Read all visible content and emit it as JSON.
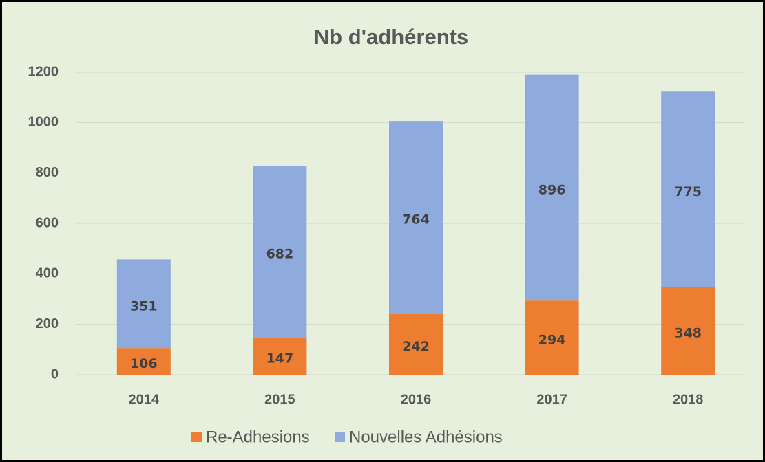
{
  "chart_data": {
    "type": "bar",
    "stacked": true,
    "title": "Nb d'adhérents",
    "categories": [
      "2014",
      "2015",
      "2016",
      "2017",
      "2018"
    ],
    "series": [
      {
        "name": "Re-Adhesions",
        "color": "#ed7d31",
        "values": [
          106,
          147,
          242,
          294,
          348
        ]
      },
      {
        "name": "Nouvelles Adhésions",
        "color": "#8faadc",
        "values": [
          351,
          682,
          764,
          896,
          775
        ]
      }
    ],
    "ylim": [
      0,
      1200
    ],
    "yticks": [
      0,
      200,
      400,
      600,
      800,
      1000,
      1200
    ],
    "grid": true,
    "legend": "bottom"
  }
}
